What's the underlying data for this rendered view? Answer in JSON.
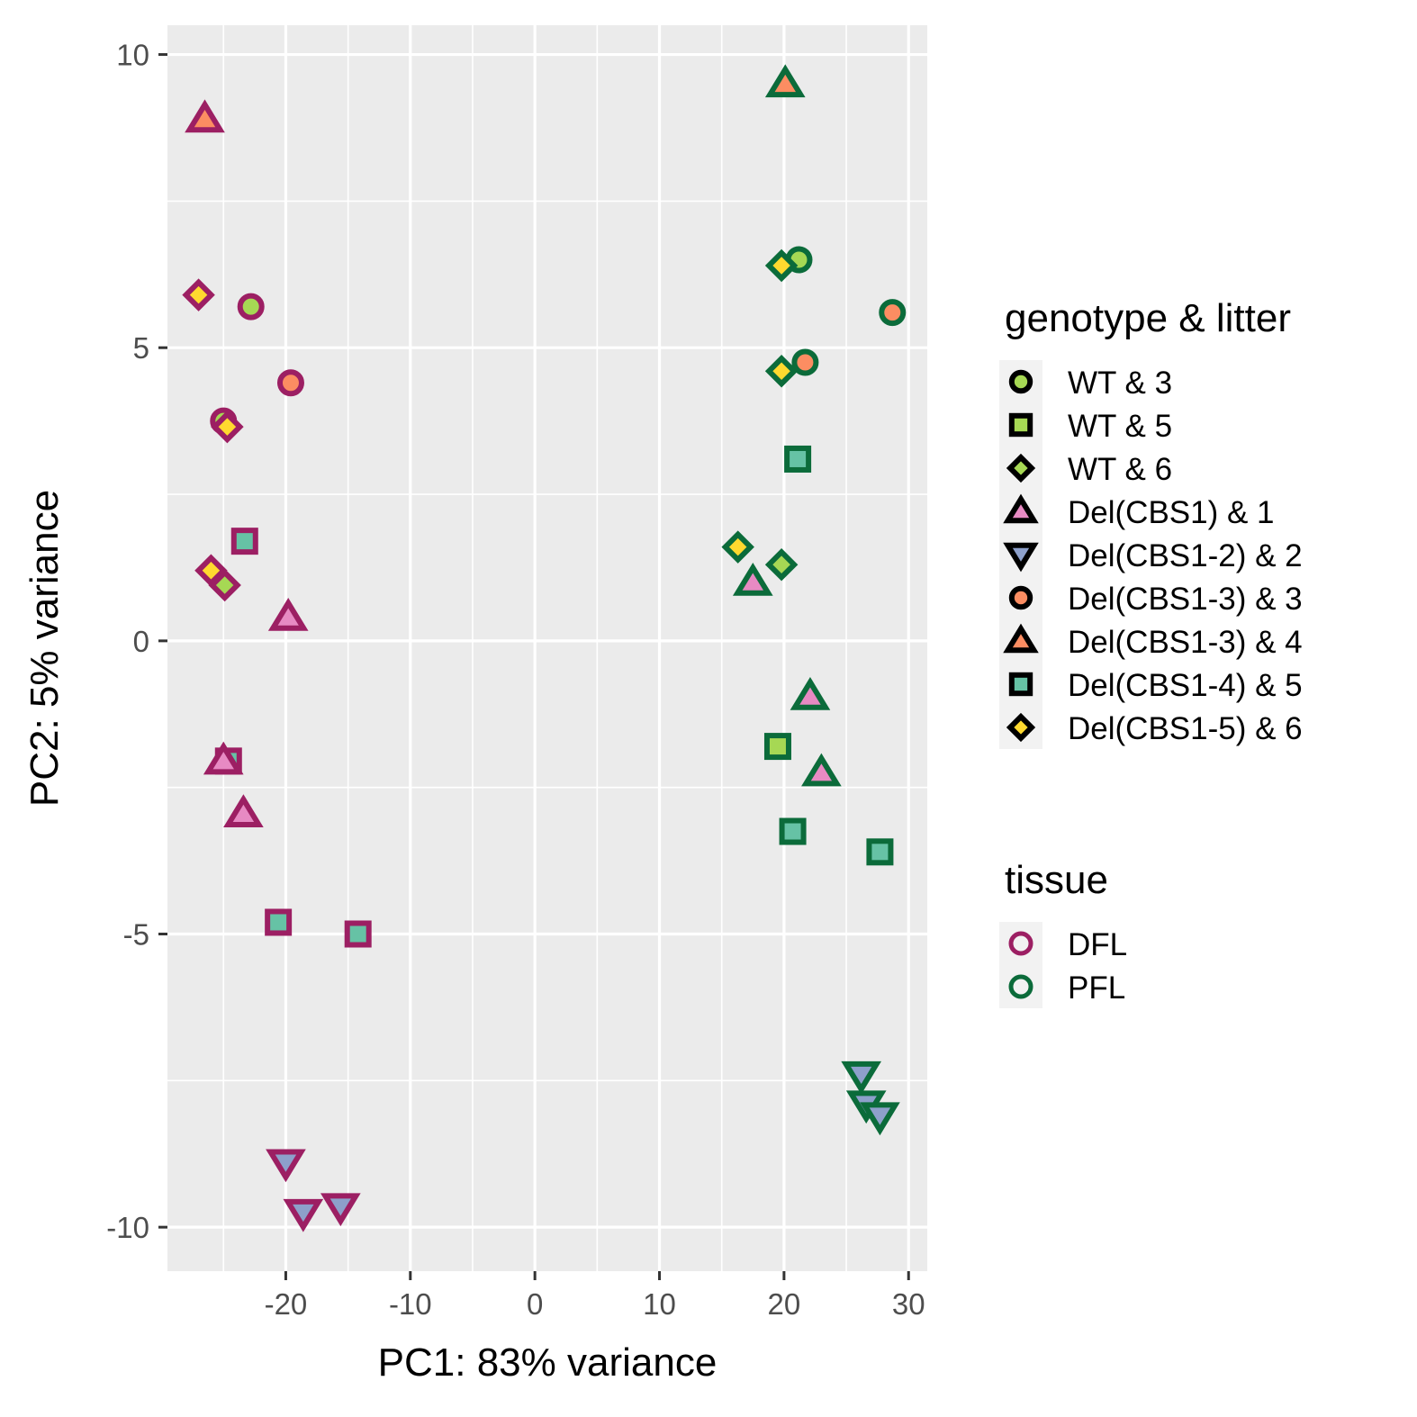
{
  "chart_data": {
    "type": "scatter",
    "xlabel": "PC1: 83% variance",
    "ylabel": "PC2: 5% variance",
    "xlim": [
      -29.5,
      31.5
    ],
    "ylim": [
      -10.75,
      10.5
    ],
    "x_ticks": [
      -20,
      -10,
      0,
      10,
      20,
      30
    ],
    "x_tick_labels": [
      "-20",
      "-10",
      "0",
      "10",
      "20",
      "30"
    ],
    "y_ticks": [
      -10,
      -5,
      0,
      5,
      10
    ],
    "y_tick_labels": [
      "-10",
      "-5",
      "0",
      "5",
      "10"
    ],
    "grid": true,
    "legend_position": "right",
    "legends": [
      {
        "title": "genotype & litter",
        "items": [
          {
            "label": "WT & 3",
            "shape": "circle",
            "fill": "#a6d854"
          },
          {
            "label": "WT & 5",
            "shape": "square",
            "fill": "#a6d854"
          },
          {
            "label": "WT & 6",
            "shape": "diamond",
            "fill": "#a6d854"
          },
          {
            "label": "Del(CBS1) & 1",
            "shape": "triangle-up",
            "fill": "#e78ac3"
          },
          {
            "label": "Del(CBS1-2) & 2",
            "shape": "triangle-down",
            "fill": "#8da0cb"
          },
          {
            "label": "Del(CBS1-3) & 3",
            "shape": "circle",
            "fill": "#fc8d62"
          },
          {
            "label": "Del(CBS1-3) & 4",
            "shape": "triangle-up",
            "fill": "#fc8d62"
          },
          {
            "label": "Del(CBS1-4) & 5",
            "shape": "square",
            "fill": "#66c2a5"
          },
          {
            "label": "Del(CBS1-5) & 6",
            "shape": "diamond",
            "fill": "#ffd92f"
          }
        ]
      },
      {
        "title": "tissue",
        "items": [
          {
            "label": "DFL",
            "color": "#9c1f63"
          },
          {
            "label": "PFL",
            "color": "#0b6b3a"
          }
        ]
      }
    ],
    "series": [
      {
        "name": "DFL",
        "points": [
          {
            "x": -26.5,
            "y": 8.9,
            "group": "Del(CBS1-3) & 4"
          },
          {
            "x": -27.0,
            "y": 5.9,
            "group": "Del(CBS1-5) & 6"
          },
          {
            "x": -22.8,
            "y": 5.7,
            "group": "WT & 3"
          },
          {
            "x": -19.6,
            "y": 4.4,
            "group": "Del(CBS1-3) & 3"
          },
          {
            "x": -25.0,
            "y": 3.75,
            "group": "WT & 3"
          },
          {
            "x": -24.7,
            "y": 3.65,
            "group": "Del(CBS1-5) & 6"
          },
          {
            "x": -23.3,
            "y": 1.7,
            "group": "Del(CBS1-4) & 5"
          },
          {
            "x": -26.0,
            "y": 1.2,
            "group": "Del(CBS1-5) & 6"
          },
          {
            "x": -24.9,
            "y": 0.95,
            "group": "WT & 6"
          },
          {
            "x": -19.8,
            "y": 0.4,
            "group": "Del(CBS1) & 1"
          },
          {
            "x": -24.6,
            "y": -2.05,
            "group": "Del(CBS1-4) & 5"
          },
          {
            "x": -25.0,
            "y": -2.05,
            "group": "Del(CBS1) & 1"
          },
          {
            "x": -23.4,
            "y": -2.95,
            "group": "Del(CBS1) & 1"
          },
          {
            "x": -20.6,
            "y": -4.8,
            "group": "Del(CBS1-4) & 5"
          },
          {
            "x": -14.2,
            "y": -5.0,
            "group": "Del(CBS1-4) & 5"
          },
          {
            "x": -20.0,
            "y": -8.9,
            "group": "Del(CBS1-2) & 2"
          },
          {
            "x": -18.6,
            "y": -9.75,
            "group": "Del(CBS1-2) & 2"
          },
          {
            "x": -15.6,
            "y": -9.65,
            "group": "Del(CBS1-2) & 2"
          }
        ]
      },
      {
        "name": "PFL",
        "points": [
          {
            "x": 20.1,
            "y": 9.5,
            "group": "Del(CBS1-3) & 4"
          },
          {
            "x": 21.2,
            "y": 6.5,
            "group": "WT & 3"
          },
          {
            "x": 19.8,
            "y": 6.4,
            "group": "Del(CBS1-5) & 6"
          },
          {
            "x": 28.7,
            "y": 5.6,
            "group": "Del(CBS1-3) & 3"
          },
          {
            "x": 21.7,
            "y": 4.75,
            "group": "Del(CBS1-3) & 3"
          },
          {
            "x": 19.8,
            "y": 4.6,
            "group": "Del(CBS1-5) & 6"
          },
          {
            "x": 21.1,
            "y": 3.1,
            "group": "Del(CBS1-4) & 5"
          },
          {
            "x": 16.3,
            "y": 1.6,
            "group": "Del(CBS1-5) & 6"
          },
          {
            "x": 19.8,
            "y": 1.3,
            "group": "WT & 6"
          },
          {
            "x": 17.5,
            "y": 1.0,
            "group": "Del(CBS1) & 1"
          },
          {
            "x": 22.1,
            "y": -0.95,
            "group": "Del(CBS1) & 1"
          },
          {
            "x": 19.5,
            "y": -1.8,
            "group": "WT & 5"
          },
          {
            "x": 23.0,
            "y": -2.25,
            "group": "Del(CBS1) & 1"
          },
          {
            "x": 20.7,
            "y": -3.25,
            "group": "Del(CBS1-4) & 5"
          },
          {
            "x": 27.7,
            "y": -3.6,
            "group": "Del(CBS1-4) & 5"
          },
          {
            "x": 26.2,
            "y": -7.4,
            "group": "Del(CBS1-2) & 2"
          },
          {
            "x": 26.6,
            "y": -7.9,
            "group": "Del(CBS1-2) & 2"
          },
          {
            "x": 27.7,
            "y": -8.1,
            "group": "Del(CBS1-2) & 2"
          }
        ]
      }
    ]
  }
}
